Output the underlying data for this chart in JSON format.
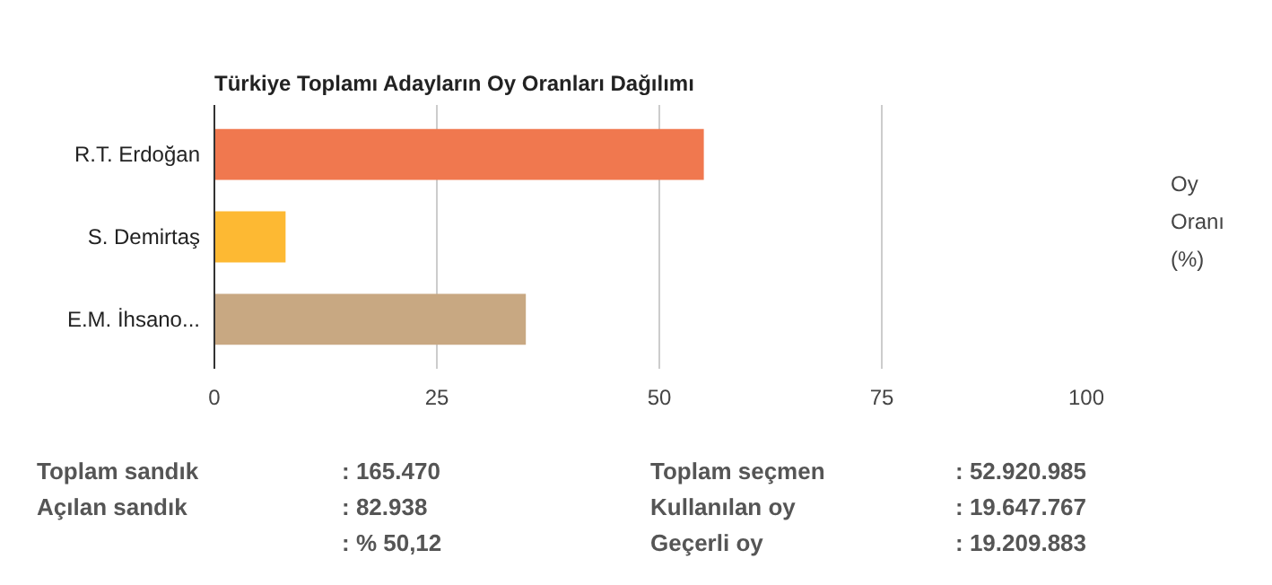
{
  "chart_data": {
    "type": "bar",
    "orientation": "horizontal",
    "title": "Türkiye Toplamı Adayların Oy Oranları Dağılımı",
    "categories": [
      "R.T. Erdoğan",
      "S. Demirtaş",
      "E.M. İhsano..."
    ],
    "values": [
      55,
      8,
      35
    ],
    "colors": [
      "#f0784f",
      "#fdb933",
      "#c8a882"
    ],
    "xlim": [
      0,
      100
    ],
    "xticks": [
      0,
      25,
      50,
      75,
      100
    ],
    "grid": "x",
    "annotations": [
      "Oy Oranı (%)",
      "Toplam sandık",
      ": 165.470",
      "Toplam seçmen",
      ": 52.920.985",
      "Açılan sandık",
      ": 82.938",
      "Kullanılan oy",
      ": 19.647.767",
      ": % 50,12",
      "Geçerli oy",
      ": 19.209.883"
    ]
  }
}
